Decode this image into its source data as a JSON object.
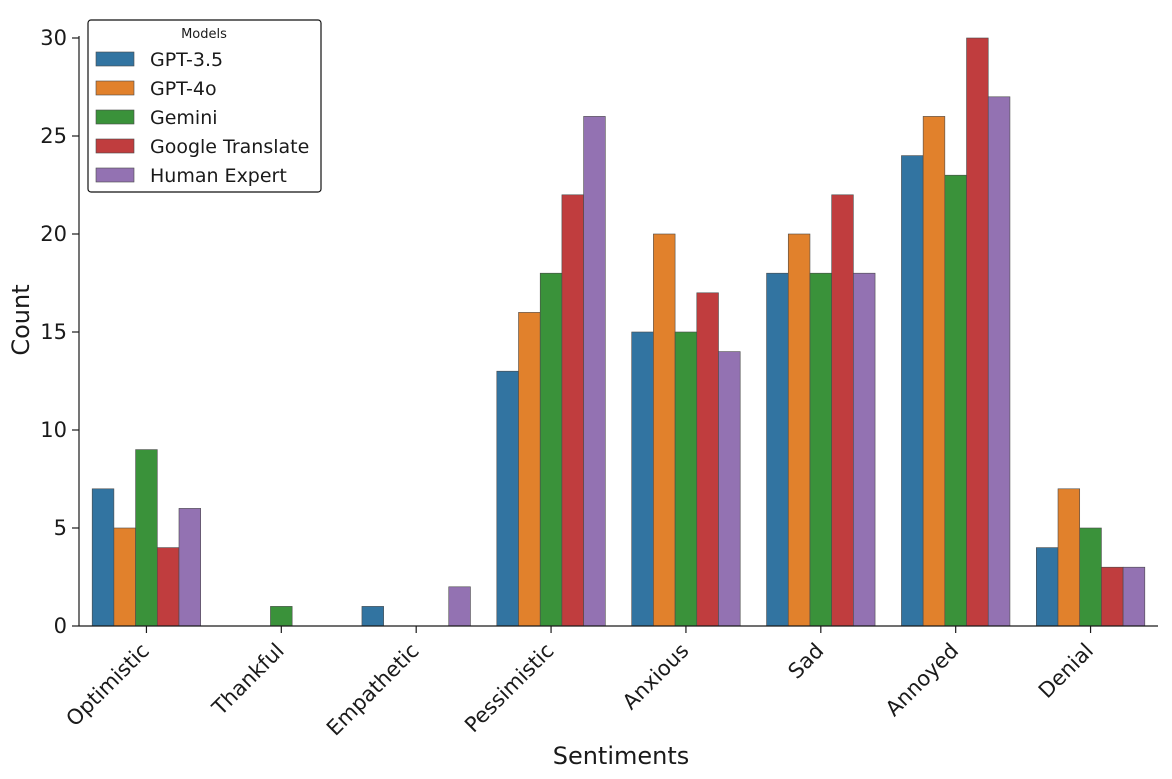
{
  "chart_data": {
    "type": "bar",
    "title": "",
    "xlabel": "Sentiments",
    "ylabel": "Count",
    "ylim": [
      0,
      30
    ],
    "yticks": [
      0,
      5,
      10,
      15,
      20,
      25,
      30
    ],
    "grid": false,
    "legend": {
      "title": "Models",
      "placement": "top-left"
    },
    "categories": [
      "Optimistic",
      "Thankful",
      "Empathetic",
      "Pessimistic",
      "Anxious",
      "Sad",
      "Annoyed",
      "Denial"
    ],
    "series": [
      {
        "name": "GPT-3.5",
        "color": "#3274a1",
        "values": [
          7,
          0,
          1,
          13,
          15,
          18,
          24,
          4
        ]
      },
      {
        "name": "GPT-4o",
        "color": "#e1812c",
        "values": [
          5,
          0,
          0,
          16,
          20,
          20,
          26,
          7
        ]
      },
      {
        "name": "Gemini",
        "color": "#3a923a",
        "values": [
          9,
          1,
          0,
          18,
          15,
          18,
          23,
          5
        ]
      },
      {
        "name": "Google Translate",
        "color": "#c03d3e",
        "values": [
          4,
          0,
          0,
          22,
          17,
          22,
          30,
          3
        ]
      },
      {
        "name": "Human Expert",
        "color": "#9372b2",
        "values": [
          6,
          0,
          2,
          26,
          14,
          18,
          27,
          3
        ]
      }
    ]
  }
}
